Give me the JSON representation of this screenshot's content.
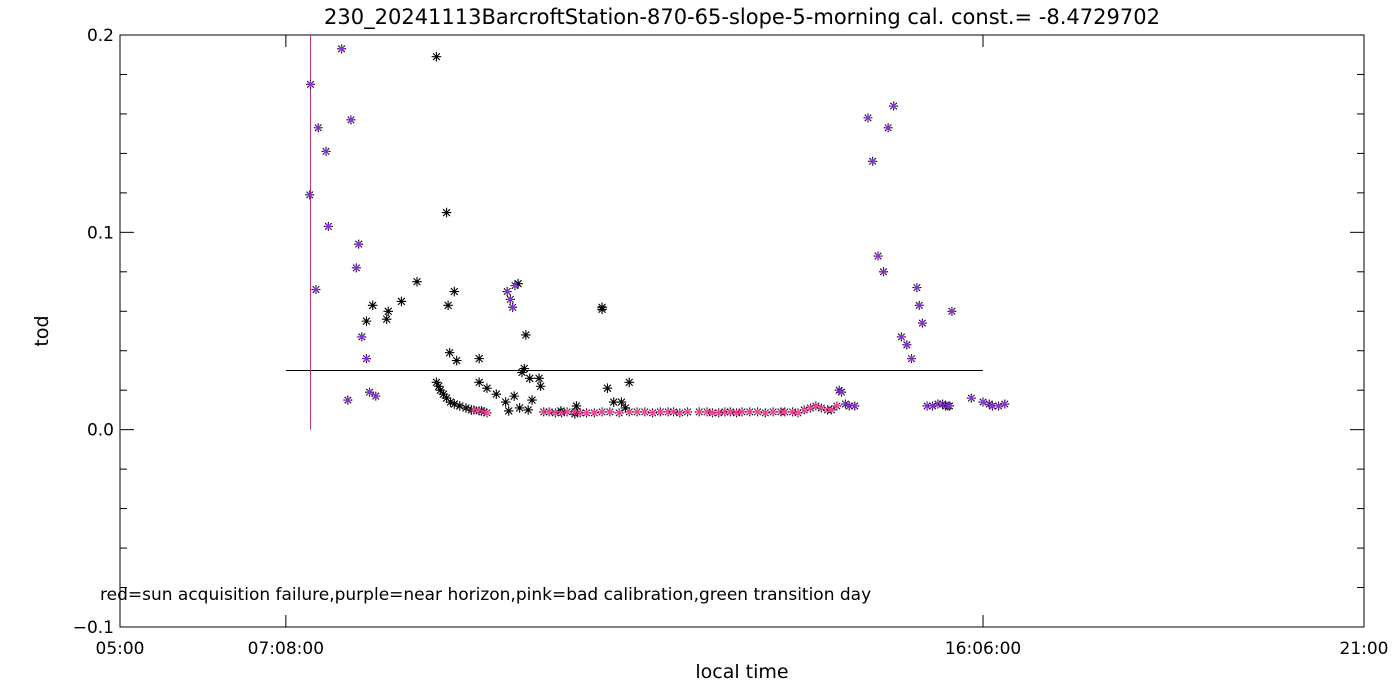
{
  "chart_data": {
    "type": "scatter",
    "title": "230_20241113BarcroftStation-870-65-slope-5-morning cal. const.= -8.4729702",
    "xlabel": "local time",
    "ylabel": "tod",
    "xlim": [
      5.0,
      21.0
    ],
    "ylim": [
      -0.1,
      0.2
    ],
    "x_tick_labels": [
      {
        "x": 5.0,
        "label": "05:00"
      },
      {
        "x": 7.1333,
        "label": "07:08:00"
      },
      {
        "x": 16.1,
        "label": "16:06:00"
      },
      {
        "x": 21.0,
        "label": "21:00"
      }
    ],
    "y_ticks": [
      {
        "y": -0.1,
        "label": "-0.1"
      },
      {
        "y": 0.0,
        "label": "0.0"
      },
      {
        "y": 0.1,
        "label": "0.1"
      },
      {
        "y": 0.2,
        "label": "0.2"
      }
    ],
    "grid": false,
    "marker": "asterisk",
    "annotation": "red=sun acquisition failure,purple=near horizon,pink=bad calibration,green transition day",
    "colors": {
      "normal": "#000000",
      "near_horizon": "#8b2be2",
      "bad_calibration": "#ff3ca0",
      "reference_line": "#000000",
      "vertical_marker": "#c0306f"
    },
    "reference_line": {
      "y": 0.03,
      "x_start": 7.1333,
      "x_end": 16.1
    },
    "vertical_marker": {
      "x": 7.45,
      "y_start": 0.0,
      "y_end": 0.2
    },
    "series": [
      {
        "category": "normal",
        "x": [
          9.07,
          9.2,
          8.25,
          8.17,
          8.82,
          8.43,
          8.45,
          8.62,
          9.3,
          9.22,
          9.62,
          9.62,
          9.72,
          9.84,
          9.96,
          10.2,
          10.27,
          10.39,
          10.17,
          10.41,
          10.07,
          10.14,
          10.22,
          10.25,
          10.12,
          10.3,
          9.24,
          9.33,
          9.07,
          9.1,
          9.12,
          9.16,
          9.2,
          9.25,
          9.3,
          9.37,
          9.45,
          9.52,
          9.65,
          10.0,
          10.85,
          10.67,
          11.2,
          11.2,
          11.27,
          10.87,
          11.55,
          11.35,
          11.45,
          11.5
        ],
        "y": [
          0.189,
          0.11,
          0.063,
          0.055,
          0.075,
          0.056,
          0.06,
          0.065,
          0.07,
          0.063,
          0.036,
          0.024,
          0.021,
          0.018,
          0.014,
          0.031,
          0.026,
          0.026,
          0.029,
          0.022,
          0.017,
          0.011,
          0.048,
          0.01,
          0.074,
          0.015,
          0.039,
          0.035,
          0.024,
          0.022,
          0.02,
          0.018,
          0.016,
          0.014,
          0.013,
          0.012,
          0.011,
          0.01,
          0.0095,
          0.0095,
          0.008,
          0.0095,
          0.062,
          0.061,
          0.021,
          0.012,
          0.024,
          0.014,
          0.014,
          0.011
        ]
      },
      {
        "category": "near_horizon",
        "x": [
          7.45,
          7.55,
          7.65,
          7.85,
          7.97,
          8.07,
          8.04,
          8.11,
          8.17,
          7.44,
          7.52,
          7.68,
          7.93,
          8.21,
          8.29,
          9.98,
          10.02,
          10.05,
          10.08,
          14.25,
          14.28,
          14.33,
          14.38,
          14.45,
          14.62,
          14.68,
          14.75,
          14.82,
          14.88,
          14.95,
          15.05,
          15.12,
          15.18,
          15.25,
          15.28,
          15.32,
          15.38,
          15.45,
          15.52,
          15.58,
          15.62,
          15.65,
          15.67,
          15.7,
          15.95,
          16.1,
          16.18,
          16.22,
          16.3,
          16.38
        ],
        "y": [
          0.175,
          0.153,
          0.141,
          0.193,
          0.157,
          0.094,
          0.082,
          0.047,
          0.036,
          0.119,
          0.071,
          0.103,
          0.015,
          0.019,
          0.017,
          0.07,
          0.066,
          0.062,
          0.073,
          0.02,
          0.019,
          0.013,
          0.012,
          0.012,
          0.158,
          0.136,
          0.088,
          0.08,
          0.153,
          0.164,
          0.047,
          0.043,
          0.036,
          0.072,
          0.063,
          0.054,
          0.012,
          0.012,
          0.013,
          0.013,
          0.012,
          0.012,
          0.012,
          0.06,
          0.016,
          0.014,
          0.013,
          0.012,
          0.012,
          0.013
        ]
      },
      {
        "category": "bad_calibration",
        "x": [
          9.55,
          9.62,
          9.68,
          9.72,
          10.45,
          10.52,
          10.6,
          10.68,
          10.75,
          10.85,
          10.92,
          11.0,
          11.1,
          11.2,
          11.3,
          11.42,
          11.55,
          11.65,
          11.75,
          11.85,
          11.95,
          12.05,
          12.12,
          12.2,
          12.3,
          12.45,
          12.55,
          12.62,
          12.7,
          12.78,
          12.85,
          12.93,
          13.0,
          13.1,
          13.2,
          13.3,
          13.4,
          13.5,
          13.55,
          13.65,
          13.72,
          13.8,
          13.88,
          13.95,
          14.02,
          14.1,
          14.15,
          14.22
        ],
        "y": [
          0.01,
          0.0095,
          0.009,
          0.0085,
          0.009,
          0.009,
          0.0085,
          0.0085,
          0.009,
          0.009,
          0.0085,
          0.0085,
          0.0085,
          0.009,
          0.009,
          0.0085,
          0.009,
          0.009,
          0.009,
          0.0085,
          0.009,
          0.009,
          0.009,
          0.0085,
          0.009,
          0.009,
          0.009,
          0.0085,
          0.0085,
          0.009,
          0.009,
          0.0085,
          0.009,
          0.009,
          0.009,
          0.0085,
          0.009,
          0.009,
          0.009,
          0.009,
          0.0085,
          0.01,
          0.011,
          0.012,
          0.011,
          0.01,
          0.01,
          0.012
        ]
      }
    ]
  }
}
